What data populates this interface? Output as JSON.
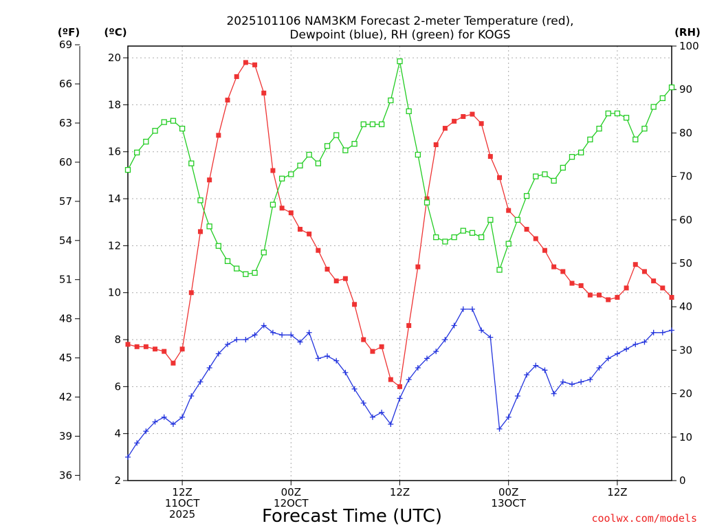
{
  "chart_data": {
    "type": "line",
    "title_line1": "2025101106 NAM3KM Forecast 2-meter Temperature (red),",
    "title_line2": "Dewpoint (blue), RH (green) for KOGS",
    "left_unit_f": "(ºF)",
    "left_unit_c": "(ºC)",
    "right_unit": "(RH)",
    "xlabel": "Forecast Time (UTC)",
    "credit": "coolwx.com/models",
    "ylim_c": [
      2,
      20.5
    ],
    "ylim_rh": [
      0,
      100
    ],
    "x_count": 61,
    "f_ticks": [
      "69",
      "66",
      "63",
      "60",
      "57",
      "54",
      "51",
      "48",
      "45",
      "42",
      "39",
      "36"
    ],
    "c_ticks": [
      "20",
      "18",
      "16",
      "14",
      "12",
      "10",
      "8",
      "6",
      "4",
      "2"
    ],
    "rh_ticks": [
      "100",
      "90",
      "80",
      "70",
      "60",
      "50",
      "40",
      "30",
      "20",
      "10",
      "0"
    ],
    "x_ticks": [
      {
        "index": 6,
        "lines": [
          "12Z",
          "11OCT",
          "2025"
        ]
      },
      {
        "index": 18,
        "lines": [
          "00Z",
          "12OCT"
        ]
      },
      {
        "index": 30,
        "lines": [
          "12Z"
        ]
      },
      {
        "index": 42,
        "lines": [
          "00Z",
          "13OCT"
        ]
      },
      {
        "index": 54,
        "lines": [
          "12Z"
        ]
      }
    ],
    "colors": {
      "temperature": "#ee3333",
      "dewpoint": "#2233dd",
      "rh": "#22cc22"
    },
    "series": [
      {
        "name": "Temperature (°C)",
        "axis": "c",
        "marker": "square-filled",
        "values": [
          7.8,
          7.7,
          7.7,
          7.6,
          7.5,
          7.0,
          7.6,
          10.0,
          12.6,
          14.8,
          16.7,
          18.2,
          19.2,
          19.8,
          19.7,
          18.5,
          15.2,
          13.6,
          13.4,
          12.7,
          12.5,
          11.8,
          11.0,
          10.5,
          10.6,
          9.5,
          8.0,
          7.5,
          7.7,
          6.3,
          6.0,
          8.6,
          11.1,
          14.0,
          16.3,
          17.0,
          17.3,
          17.5,
          17.6,
          17.2,
          15.8,
          14.9,
          13.5,
          13.1,
          12.7,
          12.3,
          11.8,
          11.1,
          10.9,
          10.4,
          10.3,
          9.9,
          9.9,
          9.7,
          9.8,
          10.2,
          11.2,
          10.9,
          10.5,
          10.2,
          9.8
        ]
      },
      {
        "name": "Dewpoint (°C)",
        "axis": "c",
        "marker": "plus",
        "values": [
          3.0,
          3.6,
          4.1,
          4.5,
          4.7,
          4.4,
          4.7,
          5.6,
          6.2,
          6.8,
          7.4,
          7.8,
          8.0,
          8.0,
          8.2,
          8.6,
          8.3,
          8.2,
          8.2,
          7.9,
          8.3,
          7.2,
          7.3,
          7.1,
          6.6,
          5.9,
          5.3,
          4.7,
          4.9,
          4.4,
          5.5,
          6.3,
          6.8,
          7.2,
          7.5,
          8.0,
          8.6,
          9.3,
          9.3,
          8.4,
          8.1,
          4.2,
          4.7,
          5.6,
          6.5,
          6.9,
          6.7,
          5.7,
          6.2,
          6.1,
          6.2,
          6.3,
          6.8,
          7.2,
          7.4,
          7.6,
          7.8,
          7.9,
          8.3,
          8.3,
          8.4
        ]
      },
      {
        "name": "RH (%)",
        "axis": "rh",
        "marker": "square-open",
        "values": [
          71.5,
          75.5,
          78,
          80.5,
          82.5,
          82.8,
          81,
          73,
          64.5,
          58.5,
          54,
          50.5,
          48.8,
          47.5,
          47.8,
          52.5,
          63.5,
          69.5,
          70.5,
          72.5,
          75,
          73,
          77,
          79.5,
          76,
          77.5,
          82,
          82,
          82,
          87.5,
          96.5,
          85,
          75,
          64,
          56,
          55,
          56,
          57.5,
          57,
          56,
          60,
          48.5,
          54.5,
          60,
          65.5,
          70,
          70.5,
          69,
          72,
          74.5,
          75.5,
          78.5,
          81,
          84.5,
          84.5,
          83.5,
          78.5,
          81,
          86,
          88,
          90.5
        ]
      }
    ]
  }
}
